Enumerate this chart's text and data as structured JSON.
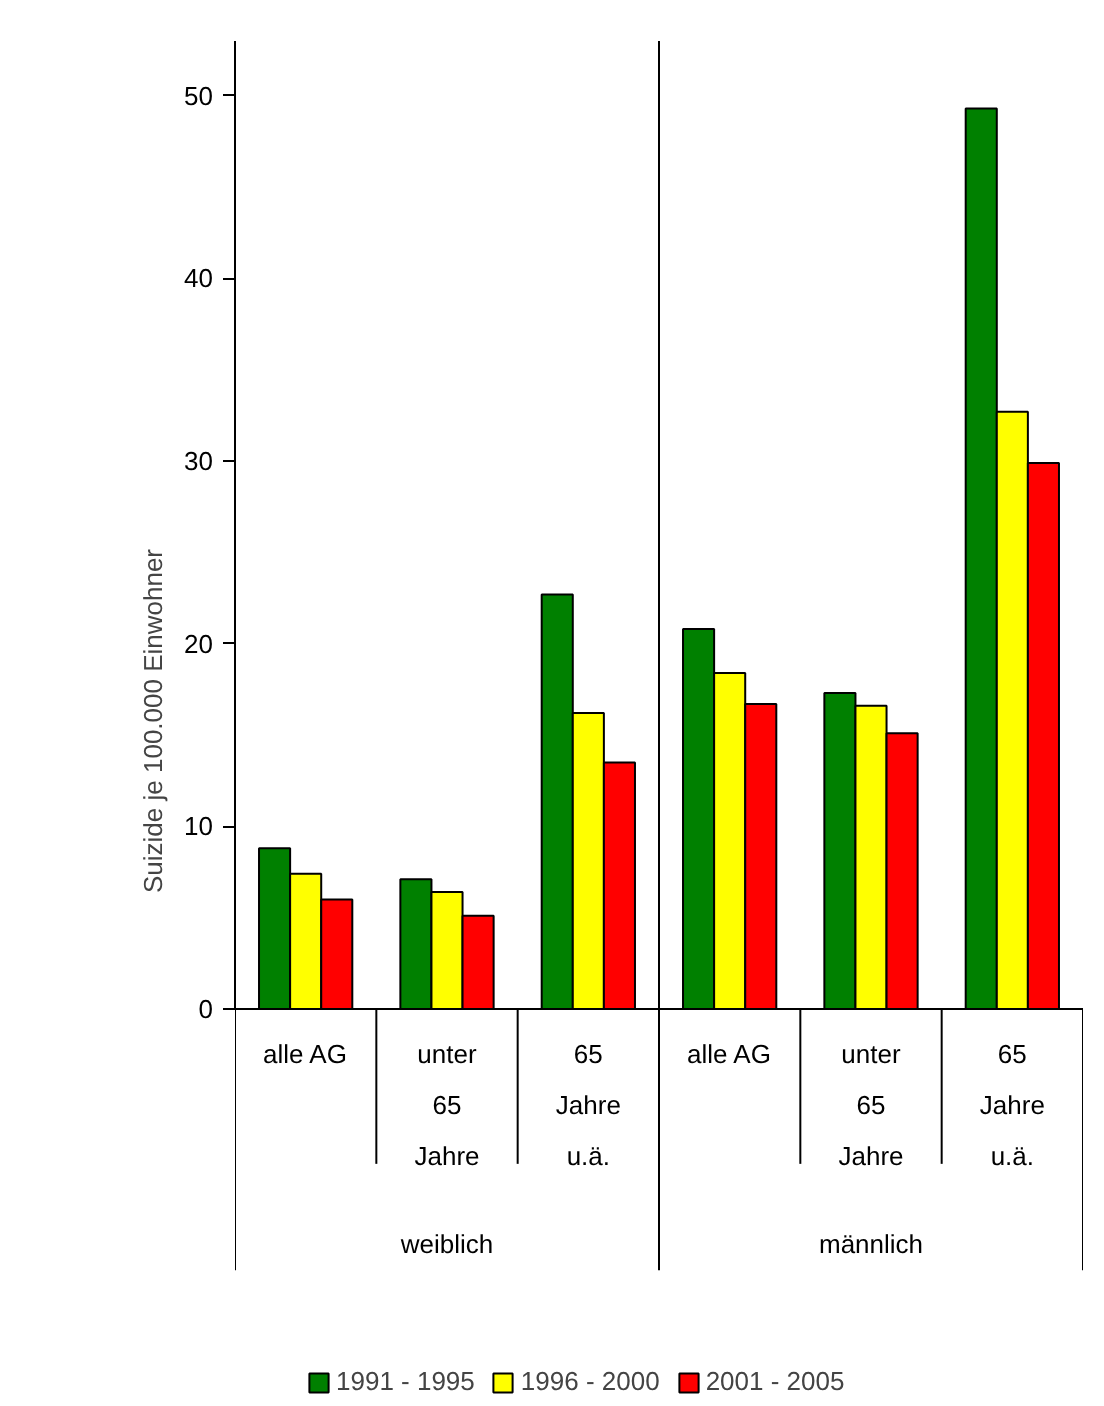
{
  "chart_data": {
    "type": "bar",
    "ylabel": "Suizide je 100.000 Einwohner",
    "categories": [
      "alle AG",
      "unter 65 Jahre",
      "65 Jahre u.ä.",
      "alle AG",
      "unter 65 Jahre",
      "65 Jahre u.ä."
    ],
    "annotations": [
      "weiblich",
      "männlich"
    ],
    "series": [
      {
        "name": "1991 - 1995",
        "color": "#008000",
        "values": [
          8.8,
          7.1,
          22.7,
          20.8,
          17.3,
          49.3
        ]
      },
      {
        "name": "1996 - 2000",
        "color": "#ffff00",
        "values": [
          7.4,
          6.4,
          16.2,
          18.4,
          16.6,
          32.7
        ]
      },
      {
        "name": "2001 - 2005",
        "color": "#ff0000",
        "values": [
          6.0,
          5.1,
          13.5,
          16.7,
          15.1,
          29.9
        ]
      }
    ],
    "ylim": [
      0,
      53
    ],
    "yticks": [
      0,
      10,
      20,
      30,
      40,
      50
    ],
    "grid": false,
    "legend": "bottom"
  }
}
